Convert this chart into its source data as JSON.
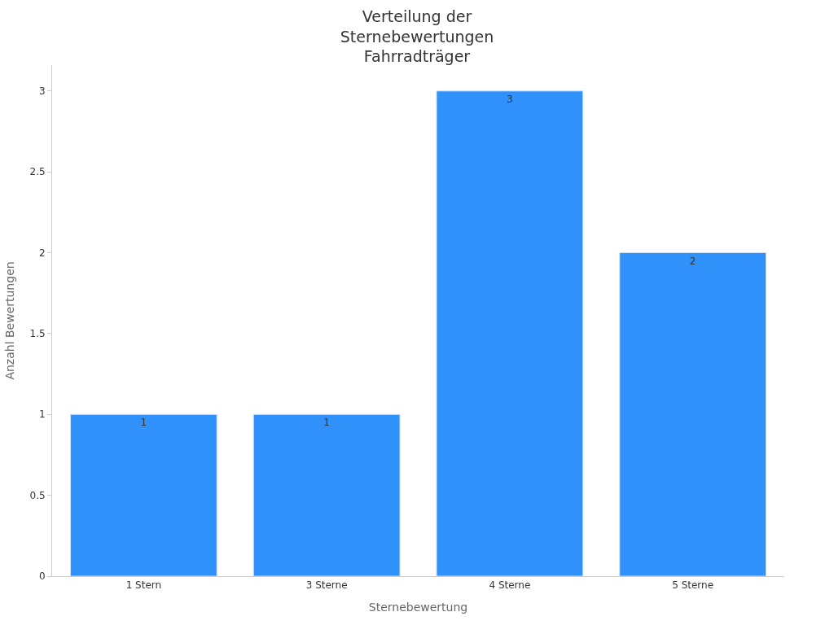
{
  "chart_data": {
    "type": "bar",
    "title": "Verteilung der\nSternebewertungen\nFahrradträger",
    "xlabel": "Sternebewertung",
    "ylabel": "Anzahl Bewertungen",
    "categories": [
      "1 Stern",
      "3 Sterne",
      "4 Sterne",
      "5 Sterne"
    ],
    "values": [
      1,
      1,
      3,
      2
    ],
    "color": "#2f91f9",
    "ylim": [
      0,
      3.16
    ],
    "yticks": [
      0,
      0.5,
      1,
      1.5,
      2,
      2.5,
      3
    ],
    "data_labels": true
  }
}
